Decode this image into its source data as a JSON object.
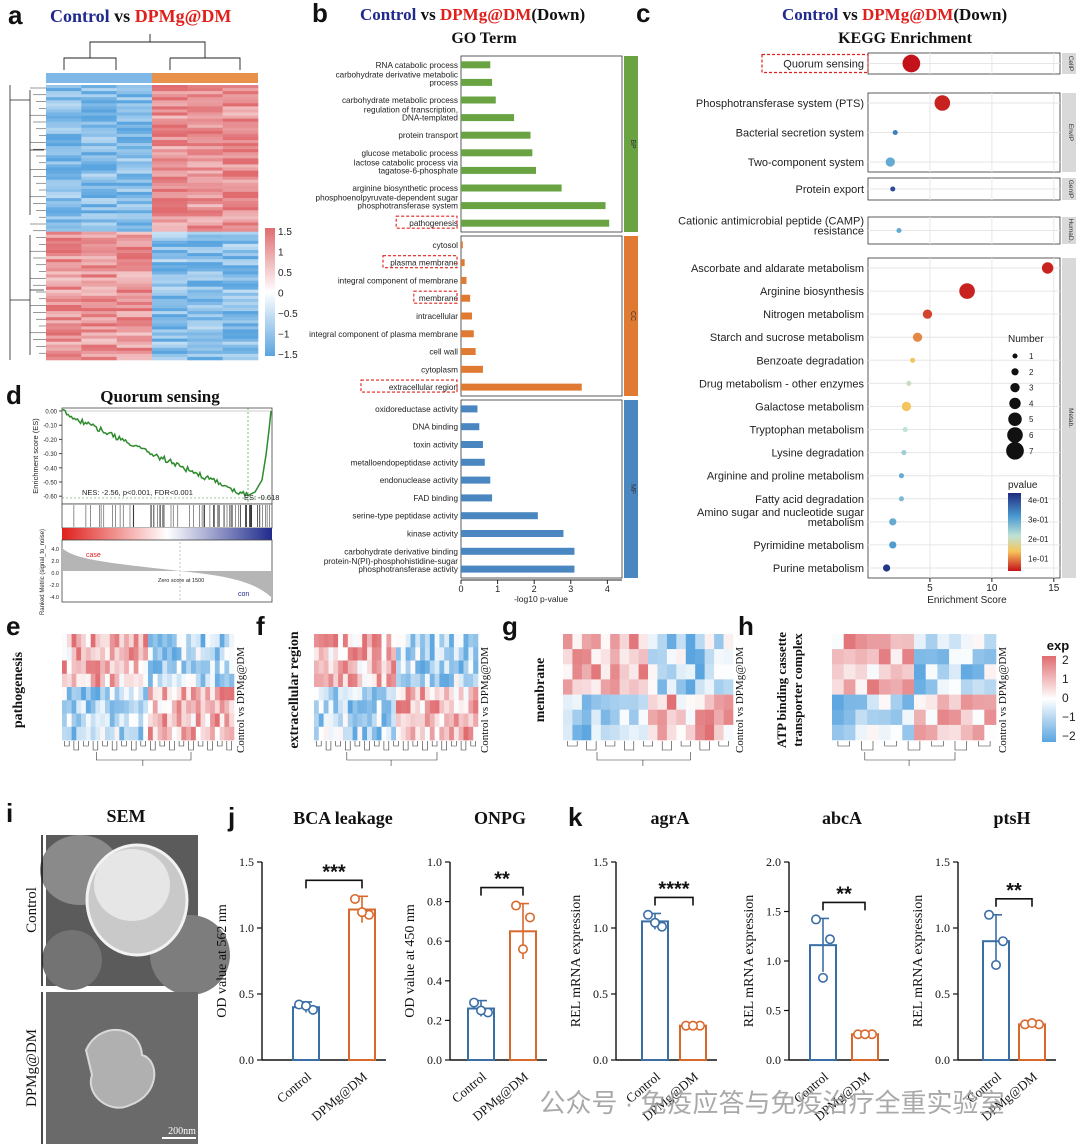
{
  "panel_letters": {
    "a": "a",
    "b": "b",
    "c": "c",
    "d": "d",
    "e": "e",
    "f": "f",
    "g": "g",
    "h": "h",
    "i": "i",
    "j": "j",
    "k": "k"
  },
  "colors": {
    "control": "#1f2a8c",
    "treat": "#e0201c",
    "bp": "#6aa342",
    "cc": "#e07a32",
    "mf": "#4a86c0",
    "ctrl_bar": "#3a6ea5",
    "trt_bar": "#d9682c"
  },
  "panel_a": {
    "title_ctrl": "Control",
    "title_vs": " vs ",
    "title_trt": "DPMg@DM",
    "colorbar_ticks": [
      "1.5",
      "1",
      "0.5",
      "0",
      "−0.5",
      "−1",
      "−1.5"
    ]
  },
  "chart_data": [
    {
      "type": "bar",
      "id": "go_term",
      "title": "GO Term",
      "title_ctrl": "Control",
      "title_vs": " vs ",
      "title_trt": "DPMg@DM",
      "title_suffix": "(Down)",
      "xlabel": "-log10 p-value",
      "xlim": [
        0,
        4.4
      ],
      "xticks": [
        "0",
        "1",
        "2",
        "3",
        "4"
      ],
      "groups": [
        {
          "name": "BP",
          "terms": [
            "RNA catabolic process",
            "carbohydrate derivative metabolic process",
            "carbohydrate metabolic process",
            "regulation of transcription, DNA-templated",
            "protein transport",
            "glucose metabolic process",
            "lactose catabolic process via tagatose-6-phosphate",
            "arginine biosynthetic process",
            "phosphoenolpyruvate-dependent sugar phosphotransferase system",
            "pathogenesis"
          ],
          "values": [
            0.8,
            0.85,
            0.95,
            1.45,
            1.9,
            1.95,
            2.05,
            2.75,
            3.95,
            4.05
          ]
        },
        {
          "name": "CC",
          "terms": [
            "cytosol",
            "plasma membrane",
            "integral component of membrane",
            "membrane",
            "intracellular",
            "integral component of plasma membrane",
            "cell wall",
            "cytoplasm",
            "extracellular region"
          ],
          "values": [
            0.05,
            0.1,
            0.15,
            0.25,
            0.3,
            0.35,
            0.4,
            0.6,
            3.3
          ]
        },
        {
          "name": "MF",
          "terms": [
            "oxidoreductase activity",
            "DNA binding",
            "toxin activity",
            "metalloendopeptidase activity",
            "endonuclease activity",
            "FAD binding",
            "serine-type peptidase activity",
            "kinase activity",
            "carbohydrate derivative binding",
            "protein-N(PI)-phosphohistidine-sugar phosphotransferase activity"
          ],
          "values": [
            0.45,
            0.5,
            0.6,
            0.65,
            0.8,
            0.85,
            2.1,
            2.8,
            3.1,
            3.1
          ]
        }
      ],
      "highlighted": [
        "pathogenesis",
        "plasma membrane",
        "membrane",
        "extracellular region"
      ]
    },
    {
      "type": "scatter",
      "id": "kegg",
      "title": "KEGG Enrichment",
      "title_ctrl": "Control",
      "title_vs": " vs ",
      "title_trt": "DPMg@DM",
      "title_suffix": "(Down)",
      "xlabel": "Enrichment Score",
      "xlim": [
        0,
        15.5
      ],
      "xticks": [
        "5",
        "10",
        "15"
      ],
      "groups": [
        {
          "name": "CellP",
          "terms": [
            "Quorum sensing"
          ],
          "scores": [
            3.5
          ],
          "counts": [
            7
          ],
          "pvalues": [
            0.01
          ]
        },
        {
          "name": "EnvIP",
          "terms": [
            "Phosphotransferase system (PTS)",
            "Bacterial secretion system",
            "Two-component system"
          ],
          "scores": [
            6.0,
            2.2,
            1.8
          ],
          "counts": [
            6,
            1,
            3
          ],
          "pvalues": [
            0.02,
            0.35,
            0.3
          ]
        },
        {
          "name": "GenIP",
          "terms": [
            "Protein export"
          ],
          "scores": [
            2.0
          ],
          "counts": [
            1
          ],
          "pvalues": [
            0.4
          ]
        },
        {
          "name": "HumaD.",
          "terms": [
            "Cationic antimicrobial peptide (CAMP) resistance"
          ],
          "scores": [
            2.5
          ],
          "counts": [
            1
          ],
          "pvalues": [
            0.3
          ]
        },
        {
          "name": "Metab.",
          "terms": [
            "Ascorbate and aldarate metabolism",
            "Arginine biosynthesis",
            "Nitrogen metabolism",
            "Starch and sucrose metabolism",
            "Benzoate degradation",
            "Drug metabolism - other enzymes",
            "Galactose metabolism",
            "Tryptophan metabolism",
            "Lysine degradation",
            "Arginine and proline metabolism",
            "Fatty acid degradation",
            "Amino sugar and nucleotide sugar metabolism",
            "Pyrimidine metabolism",
            "Purine metabolism"
          ],
          "scores": [
            14.5,
            8.0,
            4.8,
            4.0,
            3.6,
            3.3,
            3.1,
            3.0,
            2.9,
            2.7,
            2.7,
            2.0,
            2.0,
            1.5
          ],
          "counts": [
            4,
            6,
            3,
            3,
            1,
            1,
            3,
            1,
            1,
            1,
            1,
            2,
            2,
            2
          ],
          "pvalues": [
            0.02,
            0.02,
            0.04,
            0.08,
            0.12,
            0.2,
            0.12,
            0.22,
            0.25,
            0.3,
            0.28,
            0.3,
            0.32,
            0.42
          ]
        }
      ],
      "size_legend_title": "Number",
      "size_legend": [
        "1",
        "2",
        "3",
        "4",
        "5",
        "6",
        "7"
      ],
      "color_legend_title": "pvalue",
      "color_legend": [
        "4e-01",
        "3e-01",
        "2e-01",
        "1e-01"
      ]
    },
    {
      "type": "line",
      "id": "gsea",
      "title": "Quorum sensing",
      "ylabel": "Enrichment score (ES)",
      "yticks": [
        "0.00",
        "-0.10",
        "-0.20",
        "-0.30",
        "-0.40",
        "-0.50",
        "-0.60"
      ],
      "nes_text": "NES: -2.56, p<0.001, FDR<0.001",
      "es_text": "ES: -0.618",
      "metric_label": "Ranked Metric (signal_to_noise)",
      "metric_yticks": [
        "4.0",
        "2.0",
        "0.0",
        "-2.0",
        "-4.0"
      ],
      "case_label": "case",
      "con_label": "con",
      "zero_text": "Zero score at 1500"
    },
    {
      "type": "bar",
      "id": "bca",
      "title": "BCA leakage",
      "ylabel": "OD value at 562 nm",
      "categories": [
        "Control",
        "DPMg@DM"
      ],
      "values": [
        0.4,
        1.14
      ],
      "errors": [
        0.04,
        0.1
      ],
      "points": [
        [
          0.42,
          0.38,
          0.41
        ],
        [
          1.22,
          1.1,
          1.12
        ]
      ],
      "ylim": [
        0,
        1.5
      ],
      "yticks": [
        "0.0",
        "0.5",
        "1.0",
        "1.5"
      ],
      "sig": "***"
    },
    {
      "type": "bar",
      "id": "onpg",
      "title": "ONPG",
      "ylabel": "OD value at 450 nm",
      "categories": [
        "Control",
        "DPMg@DM"
      ],
      "values": [
        0.26,
        0.65
      ],
      "errors": [
        0.04,
        0.14
      ],
      "points": [
        [
          0.29,
          0.24,
          0.25
        ],
        [
          0.78,
          0.72,
          0.56
        ]
      ],
      "ylim": [
        0,
        1.0
      ],
      "yticks": [
        "0.0",
        "0.2",
        "0.4",
        "0.6",
        "0.8",
        "1.0"
      ],
      "sig": "**"
    },
    {
      "type": "bar",
      "id": "agrA",
      "title": "agrA",
      "ylabel": "REL mRNA expression",
      "categories": [
        "Control",
        "DPMg@DM"
      ],
      "values": [
        1.05,
        0.26
      ],
      "errors": [
        0.06,
        0.01
      ],
      "points": [
        [
          1.1,
          1.01,
          1.04
        ],
        [
          0.26,
          0.26,
          0.26
        ]
      ],
      "ylim": [
        0,
        1.5
      ],
      "yticks": [
        "0.0",
        "0.5",
        "1.0",
        "1.5"
      ],
      "sig": "****"
    },
    {
      "type": "bar",
      "id": "abcA",
      "title": "abcA",
      "ylabel": "REL mRNA expression",
      "categories": [
        "Control",
        "DPMg@DM"
      ],
      "values": [
        1.16,
        0.26
      ],
      "errors": [
        0.27,
        0.01
      ],
      "points": [
        [
          1.42,
          1.22,
          0.83
        ],
        [
          0.26,
          0.26,
          0.26
        ]
      ],
      "ylim": [
        0,
        2.0
      ],
      "yticks": [
        "0.0",
        "0.5",
        "1.0",
        "1.5",
        "2.0"
      ],
      "sig": "**"
    },
    {
      "type": "bar",
      "id": "ptsH",
      "title": "ptsH",
      "ylabel": "REL mRNA expression",
      "categories": [
        "Control",
        "DPMg@DM"
      ],
      "values": [
        0.9,
        0.27
      ],
      "errors": [
        0.2,
        0.01
      ],
      "points": [
        [
          1.1,
          0.9,
          0.72
        ],
        [
          0.27,
          0.27,
          0.28
        ]
      ],
      "ylim": [
        0,
        1.5
      ],
      "yticks": [
        "0.0",
        "0.5",
        "1.0",
        "1.5"
      ],
      "sig": "**"
    }
  ],
  "heatmaps": {
    "side_label": "Control vs DPMg@DM",
    "e": "pathogenesis",
    "f": "extracellular region",
    "g": "membrane",
    "h": "ATP binding cassette transporter complex",
    "legend_title": "exp",
    "legend_ticks": [
      "2",
      "1",
      "0",
      "−1",
      "−2"
    ]
  },
  "sem": {
    "title": "SEM",
    "control_label": "Control",
    "treat_label": "DPMg@DM",
    "scale_bar": "200nm"
  },
  "watermark": "公众号 · 免疫应答与免疫治疗全重实验室"
}
